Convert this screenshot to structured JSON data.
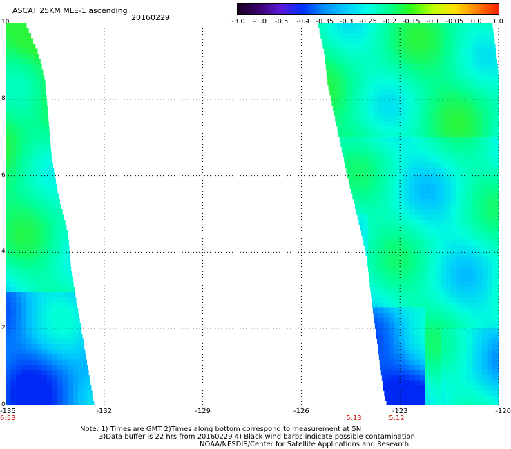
{
  "header": {
    "title": "ASCAT 25KM MLE-1 ascending",
    "date": "20160229"
  },
  "colorbar": {
    "labels": [
      "-3.0",
      "-1.0",
      "-0.5",
      "-0.4",
      "-0.35",
      "-0.3",
      "-0.25",
      "-0.2",
      "-0.15",
      "-0.1",
      "-0.05",
      "0.0",
      "1.0"
    ],
    "colors": [
      "#1a0020",
      "#3c0070",
      "#5a1ad8",
      "#0030ff",
      "#0090ff",
      "#00ccff",
      "#00ffe8",
      "#00ff90",
      "#30ff10",
      "#c0ff00",
      "#ffe000",
      "#ff8000",
      "#ff2000"
    ]
  },
  "axes": {
    "x_ticks": [
      "-135",
      "-132",
      "-129",
      "-126",
      "-123",
      "-120"
    ],
    "y_ticks": [
      "0",
      "2",
      "4",
      "6",
      "8",
      "10"
    ],
    "xlim": [
      -135,
      -120
    ],
    "ylim": [
      0,
      10
    ],
    "grid": "dotted"
  },
  "time_labels": [
    {
      "lon": -135,
      "text": "6:53"
    },
    {
      "lon": -124.4,
      "text": "5:13"
    },
    {
      "lon": -123.1,
      "text": "5:12"
    }
  ],
  "swaths": {
    "left": {
      "edge": [
        [
          10,
          -134.4
        ],
        [
          9.2,
          -134.0
        ],
        [
          8.5,
          -133.8
        ],
        [
          7.5,
          -133.7
        ],
        [
          6.5,
          -133.6
        ],
        [
          5.5,
          -133.4
        ],
        [
          4.5,
          -133.1
        ],
        [
          3.5,
          -133.0
        ],
        [
          2.5,
          -132.8
        ],
        [
          1.5,
          -132.6
        ],
        [
          0.5,
          -132.4
        ],
        [
          0,
          -132.3
        ]
      ]
    },
    "right": {
      "edge": [
        [
          10,
          -125.5
        ],
        [
          9.2,
          -125.3
        ],
        [
          8.4,
          -125.2
        ],
        [
          7.6,
          -125.0
        ],
        [
          6.8,
          -124.8
        ],
        [
          6.0,
          -124.6
        ],
        [
          5.3,
          -124.4
        ],
        [
          4.6,
          -124.2
        ],
        [
          3.8,
          -124.0
        ],
        [
          3.0,
          -123.9
        ],
        [
          2.3,
          -123.8
        ],
        [
          1.7,
          -123.7
        ],
        [
          1.0,
          -123.6
        ],
        [
          0.4,
          -123.5
        ],
        [
          0,
          -123.4
        ]
      ],
      "right_edge": [
        [
          10,
          -120.2
        ],
        [
          9.4,
          -120.1
        ],
        [
          8.6,
          -120.0
        ],
        [
          0,
          -120.0
        ]
      ]
    }
  },
  "notes": [
    "Note: 1) Times are GMT 2)Times along bottom correspond to measurement at 5N",
    "3)Data buffer is 22 hrs from 20160229 4) Black wind barbs indicate possible contamination",
    "NOAA/NESDIS/Center for Satellite Applications and Research"
  ]
}
